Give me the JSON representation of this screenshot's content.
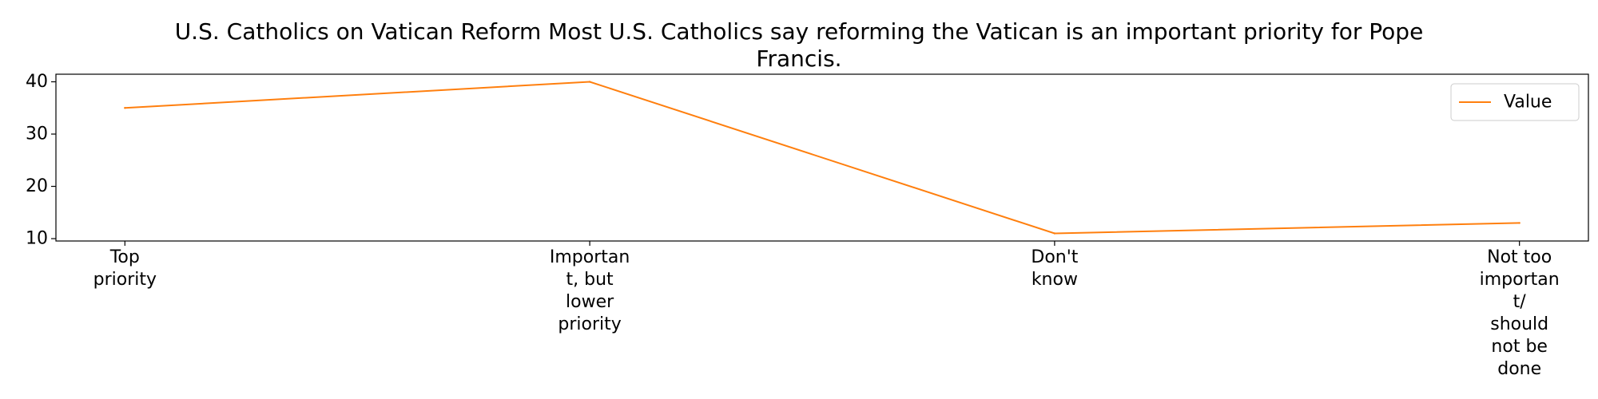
{
  "chart_data": {
    "type": "line",
    "title": "U.S. Catholics on Vatican Reform Most U.S. Catholics say reforming the Vatican is an important priority for Pope Francis.",
    "title_lines": [
      "U.S. Catholics on Vatican Reform Most U.S. Catholics say reforming the Vatican is an important priority for Pope",
      "Francis."
    ],
    "categories": [
      "Top priority",
      "Important, but lower priority",
      "Don't know",
      "Not too important/ should not be done"
    ],
    "category_label_lines": [
      [
        "Top",
        "priority"
      ],
      [
        "Importan",
        "t, but",
        "lower",
        "priority"
      ],
      [
        "Don't",
        "know"
      ],
      [
        "Not too",
        "importan",
        "t/",
        "should",
        "not be",
        "done"
      ]
    ],
    "series": [
      {
        "name": "Value",
        "values": [
          35,
          40,
          11,
          13
        ],
        "color": "#ff7f0e"
      }
    ],
    "xlabel": "",
    "ylabel": "",
    "ylim": [
      9.55,
      41.45
    ],
    "yticks": [
      10,
      20,
      30,
      40
    ],
    "grid": false,
    "legend": {
      "placement": "upper right"
    }
  }
}
